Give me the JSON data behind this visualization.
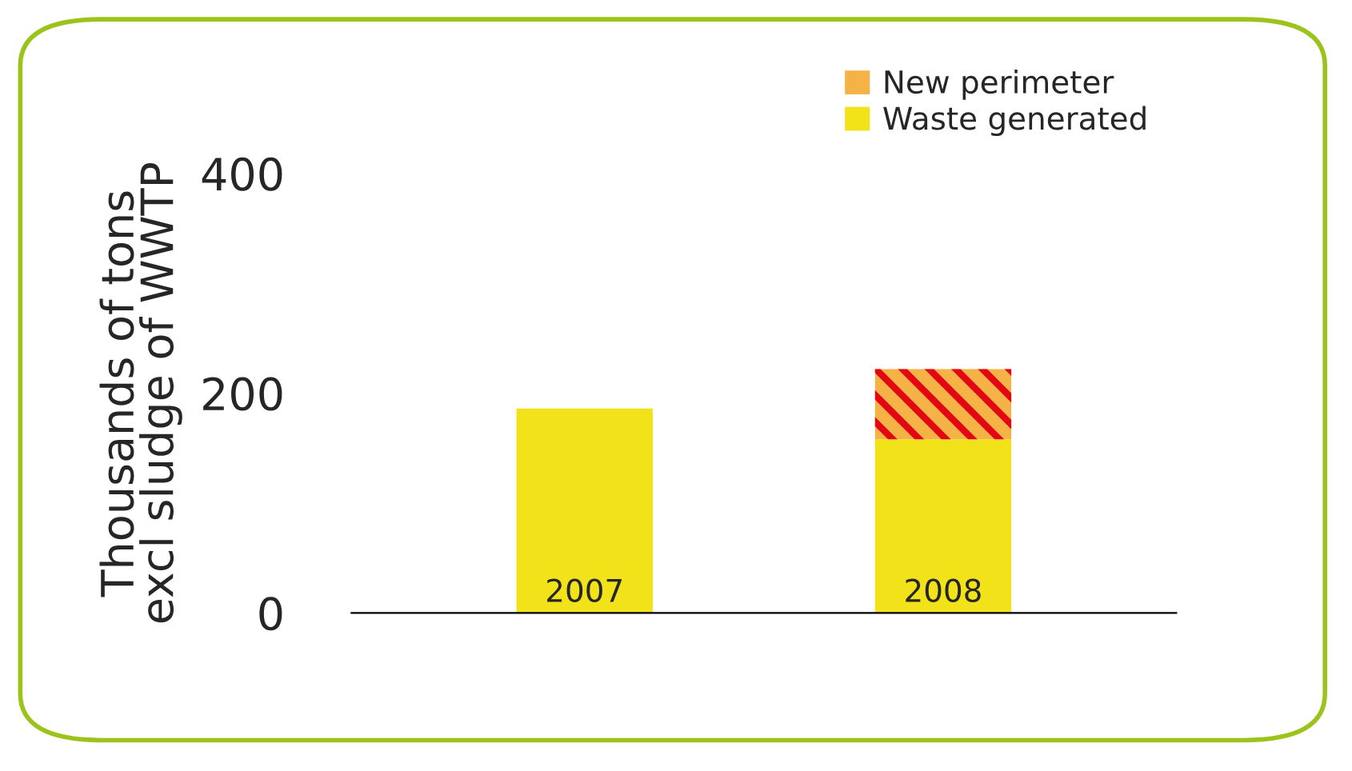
{
  "chart_data": {
    "type": "bar",
    "stacked": true,
    "ylabel": "Thousands of tons\nexcl sludge of WWTP",
    "categories": [
      "2007",
      "2008"
    ],
    "series": [
      {
        "name": "Waste generated",
        "color": "#f2e21a",
        "values": [
          186,
          158
        ]
      },
      {
        "name": "New perimeter",
        "color": "#f5b347",
        "values": [
          null,
          64
        ]
      }
    ],
    "ylim": [
      0,
      400
    ],
    "yticks": [
      0,
      200,
      400
    ],
    "grid": false,
    "legend": "top right"
  }
}
